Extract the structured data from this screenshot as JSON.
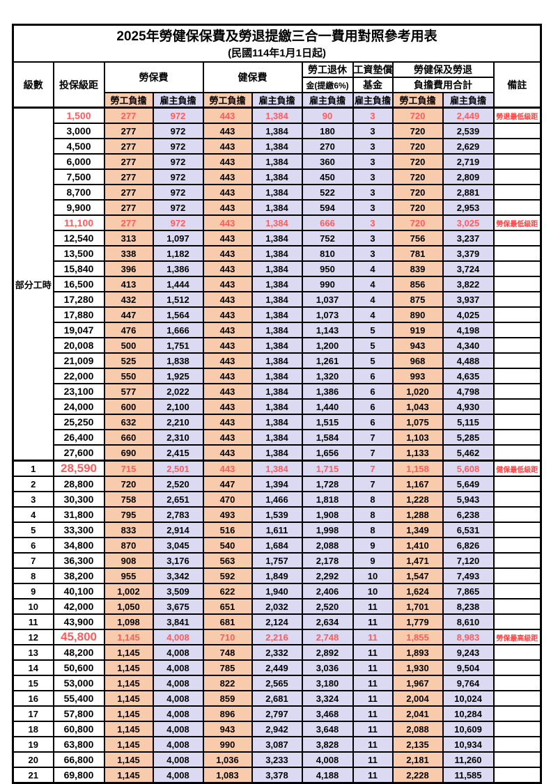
{
  "title": "2025年勞健保保費及勞退提繳三合一費用對照參考用表",
  "subtitle": "(民國114年1月1日起)",
  "header": {
    "level": "級數",
    "salary_bracket": "投保級距",
    "labor_insurance": "勞保費",
    "health_insurance": "健保費",
    "pension_line1": "勞工退休",
    "pension_line2": "金(提繳6%)",
    "wage_fund_line1": "工資墊償",
    "wage_fund_line2": "基金",
    "total_line1": "勞健保及勞退",
    "total_line2": "負擔費用合計",
    "remark": "備註",
    "employee": "勞工負擔",
    "employer": "雇主負擔"
  },
  "part_time_label": "部分工時",
  "colors": {
    "employee_bg": "#F8CBAD",
    "employer_bg": "#DCD9F2",
    "highlight_text": "#FF5B5B",
    "note_text": "#FF4040"
  },
  "rows": [
    {
      "level": "",
      "salary": "1,500",
      "li_emp": "277",
      "li_er": "972",
      "hi_emp": "443",
      "hi_er": "1,384",
      "pension": "90",
      "fund": "3",
      "tot_emp": "720",
      "tot_er": "2,449",
      "note": "勞退最低級距",
      "red": true
    },
    {
      "level": "",
      "salary": "3,000",
      "li_emp": "277",
      "li_er": "972",
      "hi_emp": "443",
      "hi_er": "1,384",
      "pension": "180",
      "fund": "3",
      "tot_emp": "720",
      "tot_er": "2,539"
    },
    {
      "level": "",
      "salary": "4,500",
      "li_emp": "277",
      "li_er": "972",
      "hi_emp": "443",
      "hi_er": "1,384",
      "pension": "270",
      "fund": "3",
      "tot_emp": "720",
      "tot_er": "2,629"
    },
    {
      "level": "",
      "salary": "6,000",
      "li_emp": "277",
      "li_er": "972",
      "hi_emp": "443",
      "hi_er": "1,384",
      "pension": "360",
      "fund": "3",
      "tot_emp": "720",
      "tot_er": "2,719"
    },
    {
      "level": "",
      "salary": "7,500",
      "li_emp": "277",
      "li_er": "972",
      "hi_emp": "443",
      "hi_er": "1,384",
      "pension": "450",
      "fund": "3",
      "tot_emp": "720",
      "tot_er": "2,809"
    },
    {
      "level": "",
      "salary": "8,700",
      "li_emp": "277",
      "li_er": "972",
      "hi_emp": "443",
      "hi_er": "1,384",
      "pension": "522",
      "fund": "3",
      "tot_emp": "720",
      "tot_er": "2,881"
    },
    {
      "level": "",
      "salary": "9,900",
      "li_emp": "277",
      "li_er": "972",
      "hi_emp": "443",
      "hi_er": "1,384",
      "pension": "594",
      "fund": "3",
      "tot_emp": "720",
      "tot_er": "2,953"
    },
    {
      "level": "",
      "salary": "11,100",
      "li_emp": "277",
      "li_er": "972",
      "hi_emp": "443",
      "hi_er": "1,384",
      "pension": "666",
      "fund": "3",
      "tot_emp": "720",
      "tot_er": "3,025",
      "note": "勞保最低級距",
      "red": true
    },
    {
      "level": "",
      "salary": "12,540",
      "li_emp": "313",
      "li_er": "1,097",
      "hi_emp": "443",
      "hi_er": "1,384",
      "pension": "752",
      "fund": "3",
      "tot_emp": "756",
      "tot_er": "3,237"
    },
    {
      "level": "",
      "salary": "13,500",
      "li_emp": "338",
      "li_er": "1,182",
      "hi_emp": "443",
      "hi_er": "1,384",
      "pension": "810",
      "fund": "3",
      "tot_emp": "781",
      "tot_er": "3,379"
    },
    {
      "level": "",
      "salary": "15,840",
      "li_emp": "396",
      "li_er": "1,386",
      "hi_emp": "443",
      "hi_er": "1,384",
      "pension": "950",
      "fund": "4",
      "tot_emp": "839",
      "tot_er": "3,724"
    },
    {
      "level": "",
      "salary": "16,500",
      "li_emp": "413",
      "li_er": "1,444",
      "hi_emp": "443",
      "hi_er": "1,384",
      "pension": "990",
      "fund": "4",
      "tot_emp": "856",
      "tot_er": "3,822"
    },
    {
      "level": "",
      "salary": "17,280",
      "li_emp": "432",
      "li_er": "1,512",
      "hi_emp": "443",
      "hi_er": "1,384",
      "pension": "1,037",
      "fund": "4",
      "tot_emp": "875",
      "tot_er": "3,937"
    },
    {
      "level": "",
      "salary": "17,880",
      "li_emp": "447",
      "li_er": "1,564",
      "hi_emp": "443",
      "hi_er": "1,384",
      "pension": "1,073",
      "fund": "4",
      "tot_emp": "890",
      "tot_er": "4,025"
    },
    {
      "level": "",
      "salary": "19,047",
      "li_emp": "476",
      "li_er": "1,666",
      "hi_emp": "443",
      "hi_er": "1,384",
      "pension": "1,143",
      "fund": "5",
      "tot_emp": "919",
      "tot_er": "4,198"
    },
    {
      "level": "",
      "salary": "20,008",
      "li_emp": "500",
      "li_er": "1,751",
      "hi_emp": "443",
      "hi_er": "1,384",
      "pension": "1,200",
      "fund": "5",
      "tot_emp": "943",
      "tot_er": "4,340"
    },
    {
      "level": "",
      "salary": "21,009",
      "li_emp": "525",
      "li_er": "1,838",
      "hi_emp": "443",
      "hi_er": "1,384",
      "pension": "1,261",
      "fund": "5",
      "tot_emp": "968",
      "tot_er": "4,488"
    },
    {
      "level": "",
      "salary": "22,000",
      "li_emp": "550",
      "li_er": "1,925",
      "hi_emp": "443",
      "hi_er": "1,384",
      "pension": "1,320",
      "fund": "6",
      "tot_emp": "993",
      "tot_er": "4,635"
    },
    {
      "level": "",
      "salary": "23,100",
      "li_emp": "577",
      "li_er": "2,022",
      "hi_emp": "443",
      "hi_er": "1,384",
      "pension": "1,386",
      "fund": "6",
      "tot_emp": "1,020",
      "tot_er": "4,798"
    },
    {
      "level": "",
      "salary": "24,000",
      "li_emp": "600",
      "li_er": "2,100",
      "hi_emp": "443",
      "hi_er": "1,384",
      "pension": "1,440",
      "fund": "6",
      "tot_emp": "1,043",
      "tot_er": "4,930"
    },
    {
      "level": "",
      "salary": "25,250",
      "li_emp": "632",
      "li_er": "2,210",
      "hi_emp": "443",
      "hi_er": "1,384",
      "pension": "1,515",
      "fund": "6",
      "tot_emp": "1,075",
      "tot_er": "5,115"
    },
    {
      "level": "",
      "salary": "26,400",
      "li_emp": "660",
      "li_er": "2,310",
      "hi_emp": "443",
      "hi_er": "1,384",
      "pension": "1,584",
      "fund": "7",
      "tot_emp": "1,103",
      "tot_er": "5,285"
    },
    {
      "level": "",
      "salary": "27,600",
      "li_emp": "690",
      "li_er": "2,415",
      "hi_emp": "443",
      "hi_er": "1,384",
      "pension": "1,656",
      "fund": "7",
      "tot_emp": "1,133",
      "tot_er": "5,462"
    },
    {
      "level": "1",
      "salary": "28,590",
      "li_emp": "715",
      "li_er": "2,501",
      "hi_emp": "443",
      "hi_er": "1,384",
      "pension": "1,715",
      "fund": "7",
      "tot_emp": "1,158",
      "tot_er": "5,608",
      "note": "健保最低級距",
      "red": true,
      "big": true,
      "thick": true
    },
    {
      "level": "2",
      "salary": "28,800",
      "li_emp": "720",
      "li_er": "2,520",
      "hi_emp": "447",
      "hi_er": "1,394",
      "pension": "1,728",
      "fund": "7",
      "tot_emp": "1,167",
      "tot_er": "5,649"
    },
    {
      "level": "3",
      "salary": "30,300",
      "li_emp": "758",
      "li_er": "2,651",
      "hi_emp": "470",
      "hi_er": "1,466",
      "pension": "1,818",
      "fund": "8",
      "tot_emp": "1,228",
      "tot_er": "5,943"
    },
    {
      "level": "4",
      "salary": "31,800",
      "li_emp": "795",
      "li_er": "2,783",
      "hi_emp": "493",
      "hi_er": "1,539",
      "pension": "1,908",
      "fund": "8",
      "tot_emp": "1,288",
      "tot_er": "6,238"
    },
    {
      "level": "5",
      "salary": "33,300",
      "li_emp": "833",
      "li_er": "2,914",
      "hi_emp": "516",
      "hi_er": "1,611",
      "pension": "1,998",
      "fund": "8",
      "tot_emp": "1,349",
      "tot_er": "6,531"
    },
    {
      "level": "6",
      "salary": "34,800",
      "li_emp": "870",
      "li_er": "3,045",
      "hi_emp": "540",
      "hi_er": "1,684",
      "pension": "2,088",
      "fund": "9",
      "tot_emp": "1,410",
      "tot_er": "6,826"
    },
    {
      "level": "7",
      "salary": "36,300",
      "li_emp": "908",
      "li_er": "3,176",
      "hi_emp": "563",
      "hi_er": "1,757",
      "pension": "2,178",
      "fund": "9",
      "tot_emp": "1,471",
      "tot_er": "7,120"
    },
    {
      "level": "8",
      "salary": "38,200",
      "li_emp": "955",
      "li_er": "3,342",
      "hi_emp": "592",
      "hi_er": "1,849",
      "pension": "2,292",
      "fund": "10",
      "tot_emp": "1,547",
      "tot_er": "7,493"
    },
    {
      "level": "9",
      "salary": "40,100",
      "li_emp": "1,002",
      "li_er": "3,509",
      "hi_emp": "622",
      "hi_er": "1,940",
      "pension": "2,406",
      "fund": "10",
      "tot_emp": "1,624",
      "tot_er": "7,865"
    },
    {
      "level": "10",
      "salary": "42,000",
      "li_emp": "1,050",
      "li_er": "3,675",
      "hi_emp": "651",
      "hi_er": "2,032",
      "pension": "2,520",
      "fund": "11",
      "tot_emp": "1,701",
      "tot_er": "8,238"
    },
    {
      "level": "11",
      "salary": "43,900",
      "li_emp": "1,098",
      "li_er": "3,841",
      "hi_emp": "681",
      "hi_er": "2,124",
      "pension": "2,634",
      "fund": "11",
      "tot_emp": "1,779",
      "tot_er": "8,610"
    },
    {
      "level": "12",
      "salary": "45,800",
      "li_emp": "1,145",
      "li_er": "4,008",
      "hi_emp": "710",
      "hi_er": "2,216",
      "pension": "2,748",
      "fund": "11",
      "tot_emp": "1,855",
      "tot_er": "8,983",
      "note": "勞保最高級距",
      "red": true,
      "big": true
    },
    {
      "level": "13",
      "salary": "48,200",
      "li_emp": "1,145",
      "li_er": "4,008",
      "hi_emp": "748",
      "hi_er": "2,332",
      "pension": "2,892",
      "fund": "11",
      "tot_emp": "1,893",
      "tot_er": "9,243"
    },
    {
      "level": "14",
      "salary": "50,600",
      "li_emp": "1,145",
      "li_er": "4,008",
      "hi_emp": "785",
      "hi_er": "2,449",
      "pension": "3,036",
      "fund": "11",
      "tot_emp": "1,930",
      "tot_er": "9,504"
    },
    {
      "level": "15",
      "salary": "53,000",
      "li_emp": "1,145",
      "li_er": "4,008",
      "hi_emp": "822",
      "hi_er": "2,565",
      "pension": "3,180",
      "fund": "11",
      "tot_emp": "1,967",
      "tot_er": "9,764"
    },
    {
      "level": "16",
      "salary": "55,400",
      "li_emp": "1,145",
      "li_er": "4,008",
      "hi_emp": "859",
      "hi_er": "2,681",
      "pension": "3,324",
      "fund": "11",
      "tot_emp": "2,004",
      "tot_er": "10,024"
    },
    {
      "level": "17",
      "salary": "57,800",
      "li_emp": "1,145",
      "li_er": "4,008",
      "hi_emp": "896",
      "hi_er": "2,797",
      "pension": "3,468",
      "fund": "11",
      "tot_emp": "2,041",
      "tot_er": "10,284"
    },
    {
      "level": "18",
      "salary": "60,800",
      "li_emp": "1,145",
      "li_er": "4,008",
      "hi_emp": "943",
      "hi_er": "2,942",
      "pension": "3,648",
      "fund": "11",
      "tot_emp": "2,088",
      "tot_er": "10,609"
    },
    {
      "level": "19",
      "salary": "63,800",
      "li_emp": "1,145",
      "li_er": "4,008",
      "hi_emp": "990",
      "hi_er": "3,087",
      "pension": "3,828",
      "fund": "11",
      "tot_emp": "2,135",
      "tot_er": "10,934"
    },
    {
      "level": "20",
      "salary": "66,800",
      "li_emp": "1,145",
      "li_er": "4,008",
      "hi_emp": "1,036",
      "hi_er": "3,233",
      "pension": "4,008",
      "fund": "11",
      "tot_emp": "2,181",
      "tot_er": "11,260"
    },
    {
      "level": "21",
      "salary": "69,800",
      "li_emp": "1,145",
      "li_er": "4,008",
      "hi_emp": "1,083",
      "hi_er": "3,378",
      "pension": "4,188",
      "fund": "11",
      "tot_emp": "2,228",
      "tot_er": "11,585"
    }
  ]
}
